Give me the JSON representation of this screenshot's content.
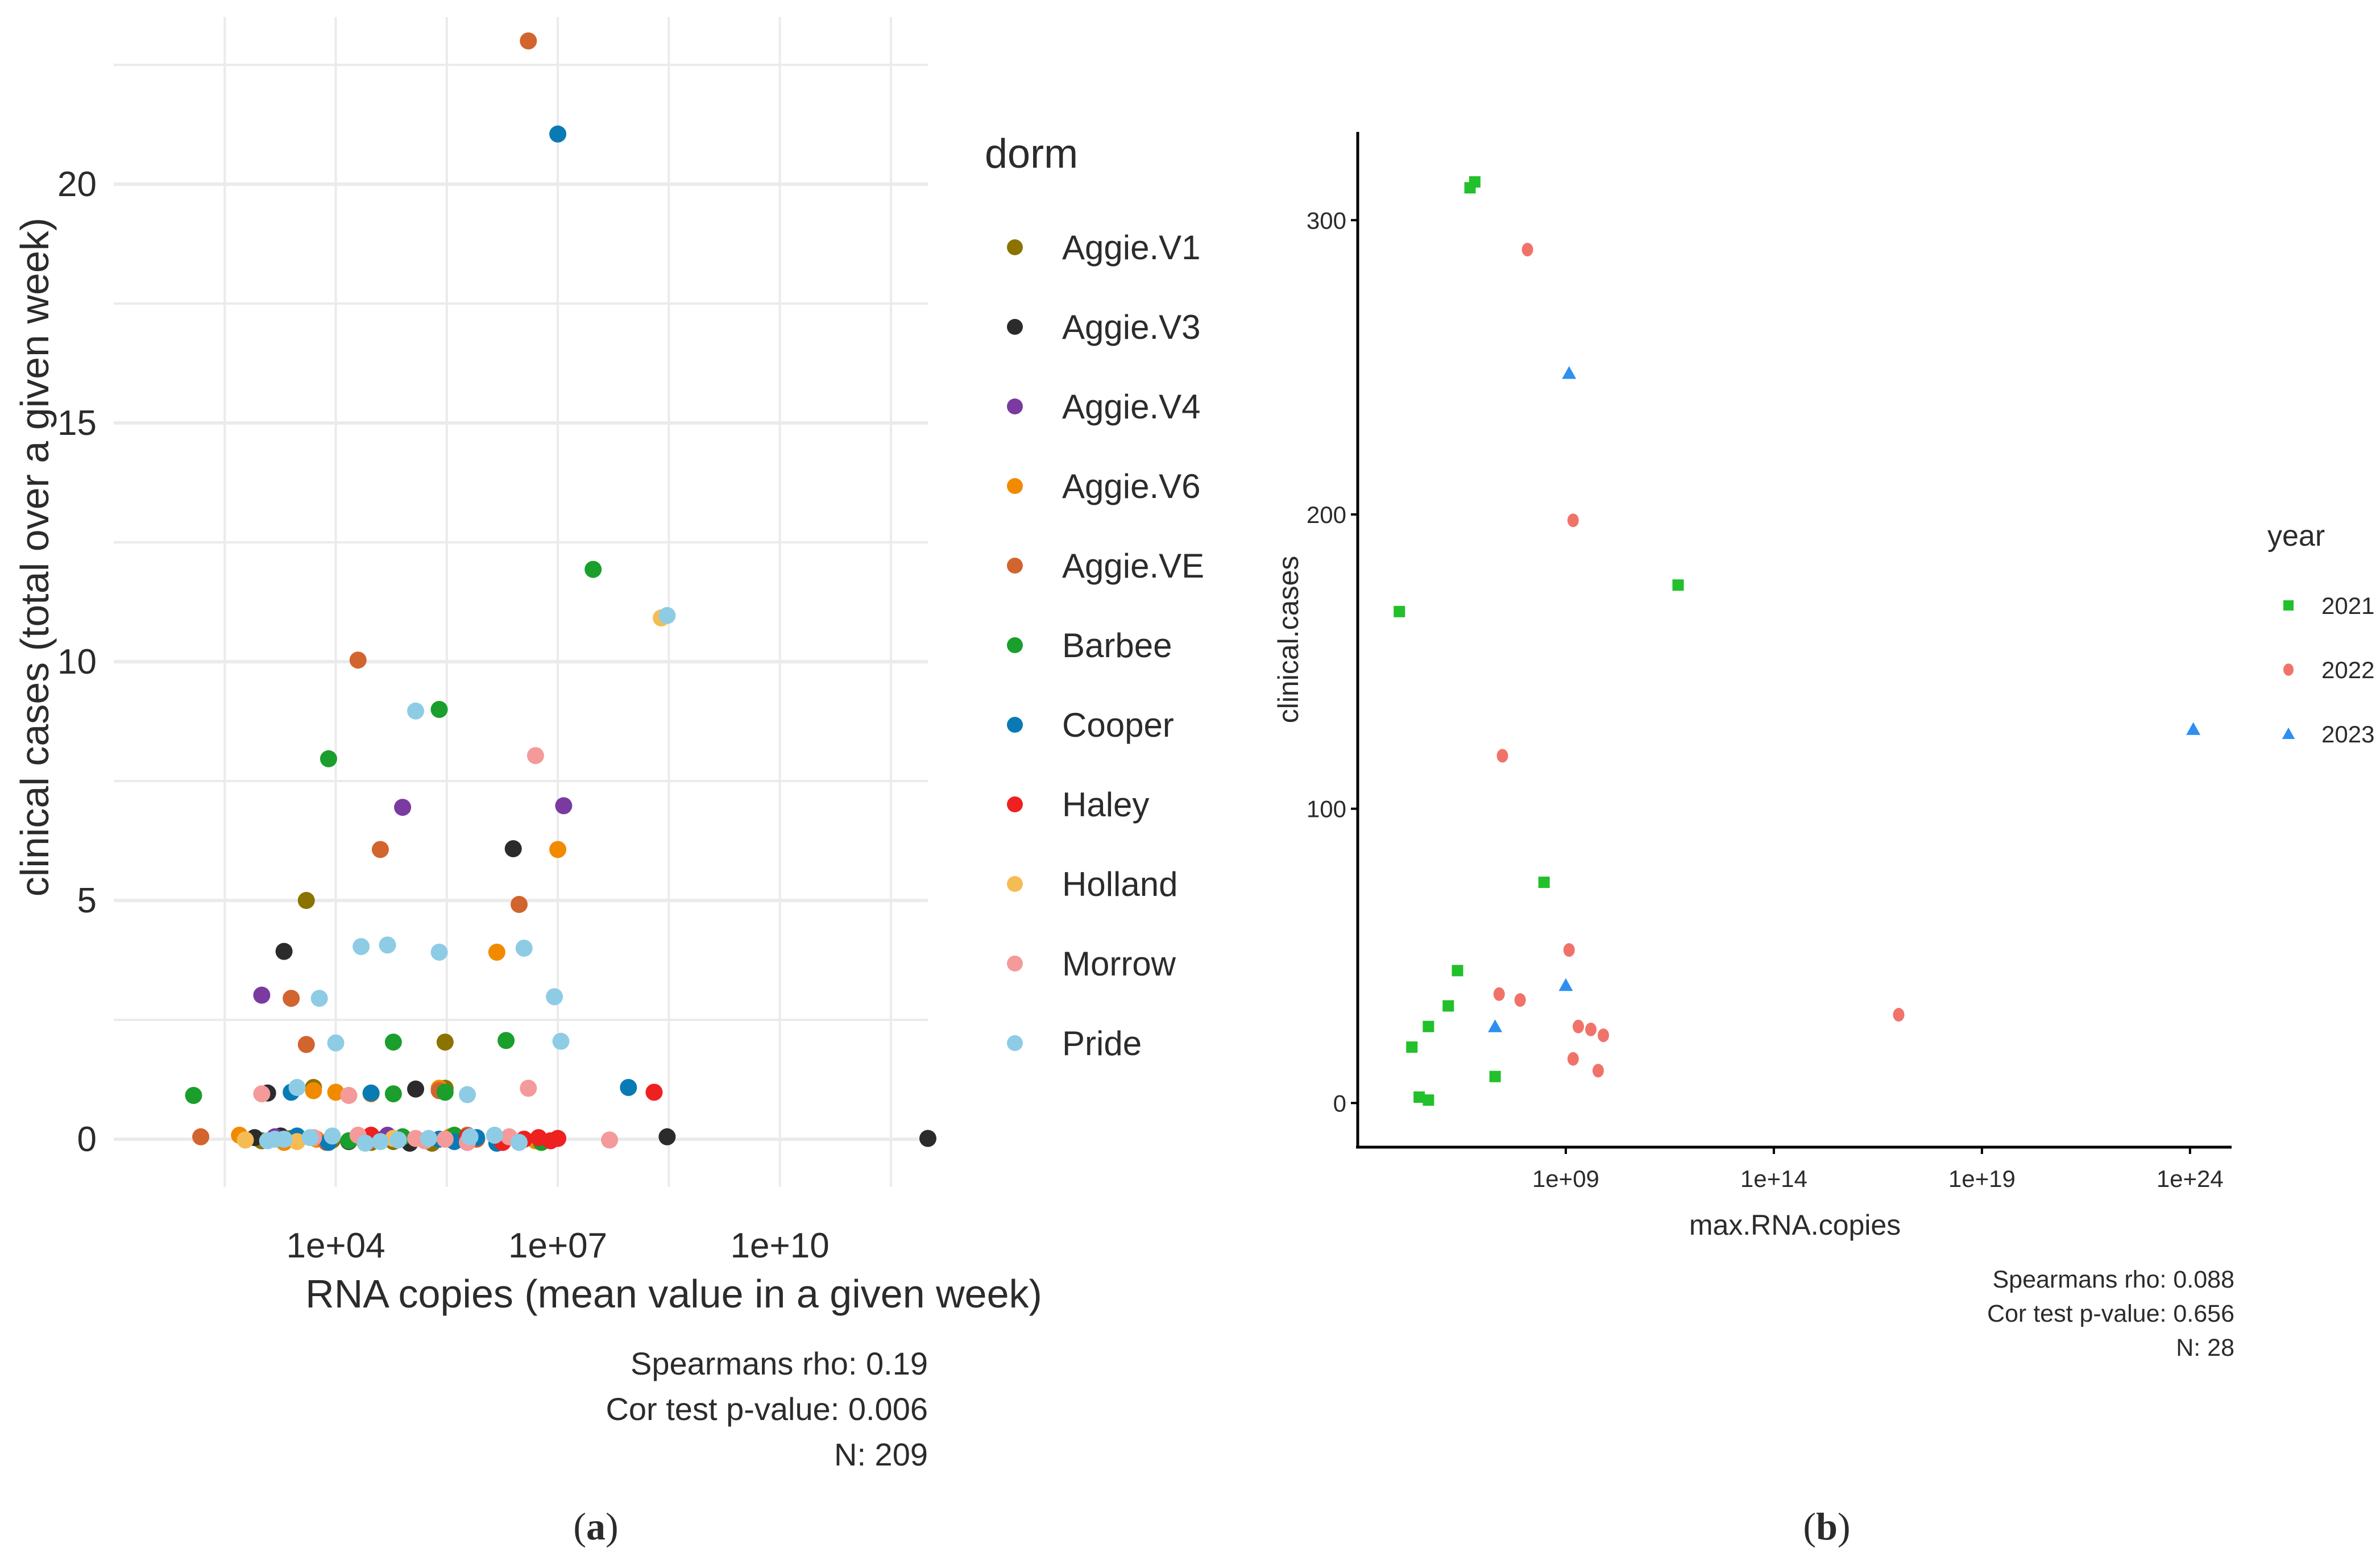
{
  "figure": {
    "panel_a_label": "a",
    "panel_b_label": "b"
  },
  "chart_data": [
    {
      "id": "a",
      "type": "scatter",
      "xscale": "log10",
      "xlabel": "RNA copies (mean value in a given week)",
      "ylabel": "clinical cases (total over a given week)",
      "xlim": [
        10.0,
        1000000000000.0
      ],
      "ylim": [
        -1,
        23.5
      ],
      "xticks": [
        {
          "value": 10000.0,
          "label": "1e+04"
        },
        {
          "value": 10000000.0,
          "label": "1e+07"
        },
        {
          "value": 10000000000.0,
          "label": "1e+10"
        }
      ],
      "yticks": [
        {
          "value": 0,
          "label": "0"
        },
        {
          "value": 5,
          "label": "5"
        },
        {
          "value": 10,
          "label": "10"
        },
        {
          "value": 15,
          "label": "15"
        },
        {
          "value": 20,
          "label": "20"
        }
      ],
      "grid": true,
      "legend_title": "dorm",
      "legend_position": "right",
      "stats": [
        "Spearmans rho: 0.19",
        "Cor test p-value: 0.006",
        "N: 209"
      ],
      "series": [
        {
          "name": "Aggie.V1",
          "color": "#8b7300",
          "points": [
            [
              5000.0,
              1
            ],
            [
              30000.0,
              0
            ],
            [
              1000.0,
              0
            ],
            [
              4000.0,
              5
            ],
            [
              300000.0,
              2
            ],
            [
              300000.0,
              1
            ],
            [
              200000.0,
              0
            ],
            [
              60000.0,
              0
            ],
            [
              9000.0,
              0
            ],
            [
              2500.0,
              0
            ]
          ]
        },
        {
          "name": "Aggie.V3",
          "color": "#2b2b2b",
          "points": [
            [
              1000000000000.0,
              0
            ],
            [
              300000000.0,
              0
            ],
            [
              2500000.0,
              6
            ],
            [
              2000.0,
              4
            ],
            [
              1200.0,
              1
            ],
            [
              500000.0,
              0
            ],
            [
              800.0,
              0
            ],
            [
              1800.0,
              0
            ],
            [
              100000.0,
              0
            ],
            [
              15000.0,
              0
            ],
            [
              40000.0,
              0
            ],
            [
              350000.0,
              0
            ],
            [
              120000.0,
              1
            ]
          ]
        },
        {
          "name": "Aggie.V4",
          "color": "#7a3aa0",
          "points": [
            [
              80000.0,
              7
            ],
            [
              12000000.0,
              7
            ],
            [
              1000.0,
              3
            ],
            [
              1500.0,
              0
            ],
            [
              50000.0,
              0
            ],
            [
              600000.0,
              0
            ]
          ]
        },
        {
          "name": "Aggie.V6",
          "color": "#f28a00",
          "points": [
            [
              10000000.0,
              6
            ],
            [
              1500000.0,
              4
            ],
            [
              30000.0,
              1
            ],
            [
              10000.0,
              1
            ],
            [
              5000.0,
              1
            ],
            [
              350000.0,
              0
            ],
            [
              500.0,
              0
            ],
            [
              2000.0,
              0
            ],
            [
              5000000.0,
              0
            ],
            [
              5500.0,
              0
            ],
            [
              20000.0,
              0
            ],
            [
              250000.0,
              1
            ]
          ]
        },
        {
          "name": "Aggie.VE",
          "color": "#d2642e",
          "points": [
            [
              4000000.0,
              23
            ],
            [
              20000.0,
              10
            ],
            [
              40000.0,
              6
            ],
            [
              3000000.0,
              5
            ],
            [
              2500.0,
              3
            ],
            [
              4000.0,
              2
            ],
            [
              250000.0,
              1
            ],
            [
              150.0,
              0
            ],
            [
              600000.0,
              0
            ],
            [
              7500.0,
              0
            ],
            [
              30000.0,
              0
            ],
            [
              800000.0,
              0
            ]
          ]
        },
        {
          "name": "Barbee",
          "color": "#1a9e2c",
          "points": [
            [
              30000000.0,
              12
            ],
            [
              8000.0,
              8
            ],
            [
              250000.0,
              9
            ],
            [
              60000.0,
              2
            ],
            [
              2000000.0,
              2
            ],
            [
              120.0,
              1
            ],
            [
              60000.0,
              1
            ],
            [
              300000.0,
              1
            ],
            [
              2800.0,
              0
            ],
            [
              80000.0,
              0
            ],
            [
              400000.0,
              0
            ],
            [
              6000000.0,
              0
            ],
            [
              15000.0,
              0
            ]
          ]
        },
        {
          "name": "Cooper",
          "color": "#0a7ab5",
          "points": [
            [
              10000000.0,
              21
            ],
            [
              90000000.0,
              1
            ],
            [
              8000.0,
              0
            ],
            [
              30000.0,
              1
            ],
            [
              250000.0,
              0
            ],
            [
              800000.0,
              0
            ],
            [
              3000.0,
              0
            ],
            [
              1500000.0,
              0
            ],
            [
              400000.0,
              0
            ],
            [
              2500.0,
              1
            ]
          ]
        },
        {
          "name": "Haley",
          "color": "#ee2020",
          "points": [
            [
              200000000.0,
              1
            ],
            [
              10000000.0,
              0
            ],
            [
              600000.0,
              0
            ],
            [
              30000.0,
              0
            ],
            [
              1800000.0,
              0
            ],
            [
              8000000.0,
              0
            ],
            [
              3500000.0,
              0
            ],
            [
              5500000.0,
              0
            ]
          ]
        },
        {
          "name": "Holland",
          "color": "#f5bc55",
          "points": [
            [
              250000000.0,
              11
            ],
            [
              3000.0,
              0
            ],
            [
              600.0,
              0
            ],
            [
              60000.0,
              0
            ]
          ]
        },
        {
          "name": "Morrow",
          "color": "#f49a9a",
          "points": [
            [
              5000000.0,
              8
            ],
            [
              4000000.0,
              1
            ],
            [
              15000.0,
              1
            ],
            [
              1000.0,
              1
            ],
            [
              50000000.0,
              0
            ],
            [
              120000.0,
              0
            ],
            [
              2200000.0,
              0
            ],
            [
              20000.0,
              0
            ],
            [
              600000.0,
              0
            ],
            [
              160000.0,
              0
            ],
            [
              300000.0,
              0
            ],
            [
              5000.0,
              0
            ]
          ]
        },
        {
          "name": "Pride",
          "color": "#8ecce6",
          "points": [
            [
              120000.0,
              9
            ],
            [
              3500000.0,
              4
            ],
            [
              22000.0,
              4
            ],
            [
              50000.0,
              4
            ],
            [
              250000.0,
              4
            ],
            [
              6000.0,
              3
            ],
            [
              9000000.0,
              3
            ],
            [
              10000.0,
              2
            ],
            [
              11000000.0,
              2
            ],
            [
              3000.0,
              1
            ],
            [
              600000.0,
              1
            ],
            [
              300000000.0,
              11
            ],
            [
              1500.0,
              0
            ],
            [
              4500.0,
              0
            ],
            [
              9000.0,
              0
            ],
            [
              25000.0,
              0
            ],
            [
              40000.0,
              0
            ],
            [
              70000.0,
              0
            ],
            [
              180000.0,
              0
            ],
            [
              650000.0,
              0
            ],
            [
              1400000.0,
              0
            ],
            [
              3000000.0,
              0
            ],
            [
              1200.0,
              0
            ],
            [
              2000.0,
              0
            ]
          ]
        }
      ]
    },
    {
      "id": "b",
      "type": "scatter",
      "xscale": "log10",
      "xlabel": "max.RNA.copies",
      "ylabel": "clinical.cases",
      "xlim": [
        10000.0,
        1e+25
      ],
      "ylim": [
        -15,
        330
      ],
      "xticks": [
        {
          "value": 1000000000.0,
          "label": "1e+09"
        },
        {
          "value": 100000000000000.0,
          "label": "1e+14"
        },
        {
          "value": 1e+19,
          "label": "1e+19"
        },
        {
          "value": 1e+24,
          "label": "1e+24"
        }
      ],
      "yticks": [
        {
          "value": 0,
          "label": "0"
        },
        {
          "value": 100,
          "label": "100"
        },
        {
          "value": 200,
          "label": "200"
        },
        {
          "value": 300,
          "label": "300"
        }
      ],
      "grid": false,
      "legend_title": "year",
      "legend_position": "right",
      "stats": [
        "Spearmans rho: 0.088",
        "Cor test p-value: 0.656",
        "N: 28"
      ],
      "series": [
        {
          "name": "2021",
          "color": "#22c02a",
          "shape": "square",
          "points": [
            [
              6500000.0,
              313
            ],
            [
              5000000.0,
              311
            ],
            [
              100000.0,
              167
            ],
            [
              500000000000.0,
              176
            ],
            [
              300000000.0,
              75
            ],
            [
              2500000.0,
              45
            ],
            [
              1500000.0,
              33
            ],
            [
              500000.0,
              26
            ],
            [
              200000.0,
              19
            ],
            [
              20000000.0,
              9
            ],
            [
              300000.0,
              2
            ],
            [
              500000.0,
              1
            ]
          ]
        },
        {
          "name": "2022",
          "color": "#f0736a",
          "shape": "circle",
          "points": [
            [
              120000000.0,
              290
            ],
            [
              1500000000.0,
              198
            ],
            [
              30000000.0,
              118
            ],
            [
              1200000000.0,
              52
            ],
            [
              25000000.0,
              37
            ],
            [
              80000000.0,
              35
            ],
            [
              2000000000.0,
              26
            ],
            [
              4000000000.0,
              25
            ],
            [
              8000000000.0,
              23
            ],
            [
              1e+17,
              30
            ],
            [
              1500000000.0,
              15
            ],
            [
              6000000000.0,
              11
            ]
          ]
        },
        {
          "name": "2023",
          "color": "#2e8ff0",
          "shape": "triangle",
          "points": [
            [
              1200000000.0,
              248
            ],
            [
              1000000000.0,
              40
            ],
            [
              20000000.0,
              26
            ],
            [
              1.2e+24,
              127
            ]
          ]
        }
      ]
    }
  ]
}
